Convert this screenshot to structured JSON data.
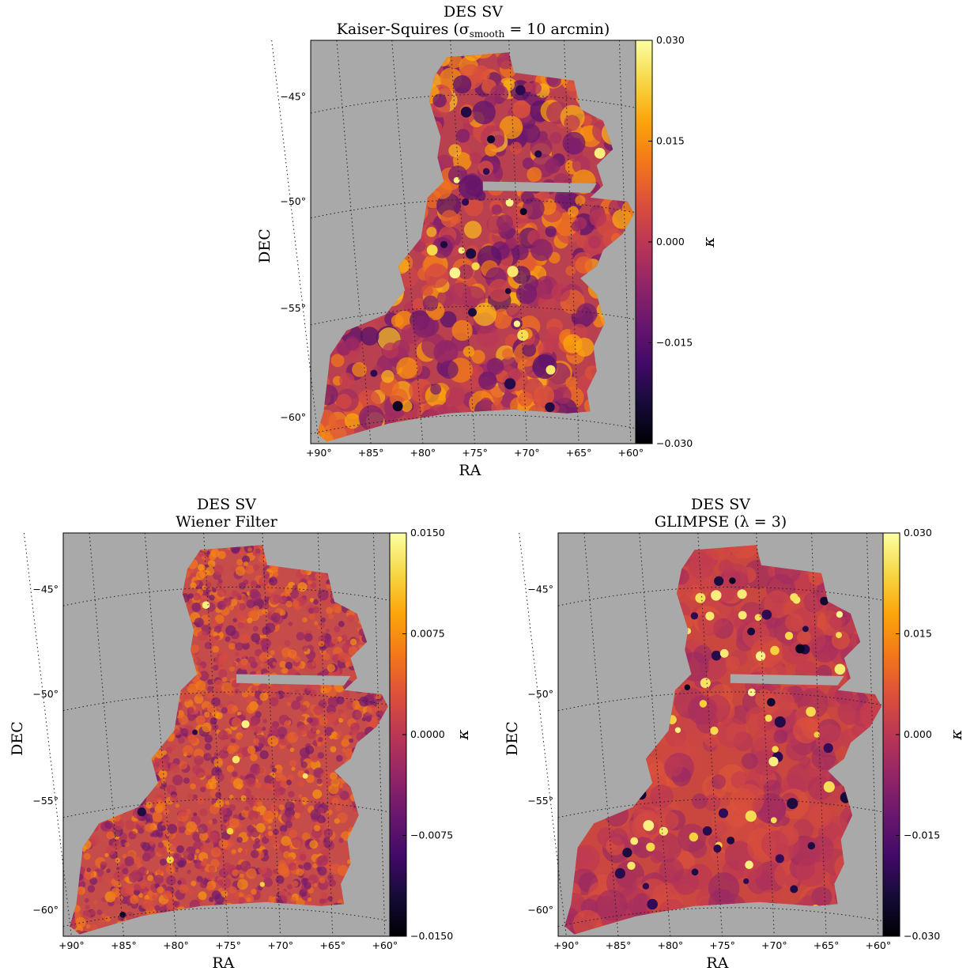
{
  "panels": [
    {
      "id": "ks",
      "title": "DES SV",
      "subtitle": "Kaiser-Squires",
      "subtitle_param": "(σ",
      "subtitle_sub": "smooth",
      "subtitle_rest": " = 10 arcmin)",
      "xlabel": "RA",
      "ylabel": "DEC",
      "cbar_label": "κ",
      "cbar_ticks": [
        "0.030",
        "0.015",
        "0.000",
        "−0.015",
        "−0.030"
      ],
      "ra_ticks": [
        "+90°",
        "+85°",
        "+80°",
        "+75°",
        "+70°",
        "+65°",
        "+60°"
      ],
      "dec_ticks": [
        "−45°",
        "−50°",
        "−55°",
        "−60°"
      ]
    },
    {
      "id": "wf",
      "title": "DES SV",
      "subtitle": "Wiener Filter",
      "xlabel": "RA",
      "ylabel": "DEC",
      "cbar_label": "κ",
      "cbar_ticks": [
        "0.0150",
        "0.0075",
        "0.0000",
        "−0.0075",
        "−0.0150"
      ],
      "ra_ticks": [
        "+90°",
        "+85°",
        "+80°",
        "+75°",
        "+70°",
        "+65°",
        "+60°"
      ],
      "dec_ticks": [
        "−45°",
        "−50°",
        "−55°",
        "−60°"
      ]
    },
    {
      "id": "gl",
      "title": "DES SV",
      "subtitle": "GLIMPSE",
      "subtitle_param": "(λ = 3)",
      "xlabel": "RA",
      "ylabel": "DEC",
      "cbar_label": "κ",
      "cbar_ticks": [
        "0.030",
        "0.015",
        "0.000",
        "−0.015",
        "−0.030"
      ],
      "ra_ticks": [
        "+90°",
        "+85°",
        "+80°",
        "+75°",
        "+70°",
        "+65°",
        "+60°"
      ],
      "dec_ticks": [
        "−45°",
        "−50°",
        "−55°",
        "−60°"
      ]
    }
  ],
  "chart_data": [
    {
      "type": "heatmap",
      "title": "DES SV Kaiser-Squires (σsmooth = 10 arcmin)",
      "xlabel": "RA",
      "ylabel": "DEC",
      "colorbar_label": "κ",
      "colormap": "inferno",
      "clim": [
        -0.03,
        0.03
      ],
      "ra_range_deg": [
        90,
        60
      ],
      "dec_range_deg": [
        -60,
        -43
      ],
      "grid": true,
      "masked_color": "#a9a9a9"
    },
    {
      "type": "heatmap",
      "title": "DES SV Wiener Filter",
      "xlabel": "RA",
      "ylabel": "DEC",
      "colorbar_label": "κ",
      "colormap": "inferno",
      "clim": [
        -0.015,
        0.015
      ],
      "ra_range_deg": [
        90,
        60
      ],
      "dec_range_deg": [
        -60,
        -43
      ],
      "grid": true,
      "masked_color": "#a9a9a9"
    },
    {
      "type": "heatmap",
      "title": "DES SV GLIMPSE (λ = 3)",
      "xlabel": "RA",
      "ylabel": "DEC",
      "colorbar_label": "κ",
      "colormap": "inferno",
      "clim": [
        -0.03,
        0.03
      ],
      "ra_range_deg": [
        90,
        60
      ],
      "dec_range_deg": [
        -60,
        -43
      ],
      "grid": true,
      "masked_color": "#a9a9a9"
    }
  ]
}
